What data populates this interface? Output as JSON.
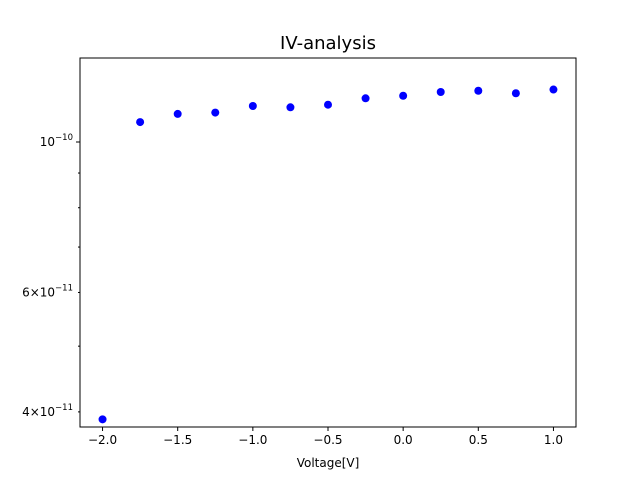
{
  "chart_data": {
    "type": "scatter",
    "title": "IV-analysis",
    "xlabel": "Voltage[V]",
    "ylabel": "",
    "y_scale": "log",
    "xlim": [
      -2.15,
      1.15
    ],
    "ylim": [
      3.8e-11,
      1.33e-10
    ],
    "x_ticks": [
      -2.0,
      -1.5,
      -1.0,
      -0.5,
      0.0,
      0.5,
      1.0
    ],
    "x_tick_labels": [
      "−2.0",
      "−1.5",
      "−1.0",
      "−0.5",
      "0.0",
      "0.5",
      "1.0"
    ],
    "y_major_ticks": [
      {
        "value": 1e-10,
        "mantissa": "",
        "exponent": "−10"
      }
    ],
    "y_minor_ticks": [
      {
        "value": 4e-11,
        "mantissa": "4",
        "exponent": "−11"
      },
      {
        "value": 5e-11,
        "mantissa": "",
        "exponent": ""
      },
      {
        "value": 6e-11,
        "mantissa": "6",
        "exponent": "−11"
      },
      {
        "value": 7e-11,
        "mantissa": "",
        "exponent": ""
      },
      {
        "value": 8e-11,
        "mantissa": "",
        "exponent": ""
      },
      {
        "value": 9e-11,
        "mantissa": "",
        "exponent": ""
      }
    ],
    "grid": false,
    "legend": false,
    "series": [
      {
        "color": "#0000ff",
        "x": [
          -2.0,
          -1.75,
          -1.5,
          -1.25,
          -1.0,
          -0.75,
          -0.5,
          -0.25,
          0.0,
          0.25,
          0.5,
          0.75,
          1.0
        ],
        "y": [
          3.9e-11,
          1.07e-10,
          1.1e-10,
          1.105e-10,
          1.13e-10,
          1.125e-10,
          1.135e-10,
          1.16e-10,
          1.17e-10,
          1.185e-10,
          1.19e-10,
          1.18e-10,
          1.195e-10
        ]
      }
    ]
  }
}
